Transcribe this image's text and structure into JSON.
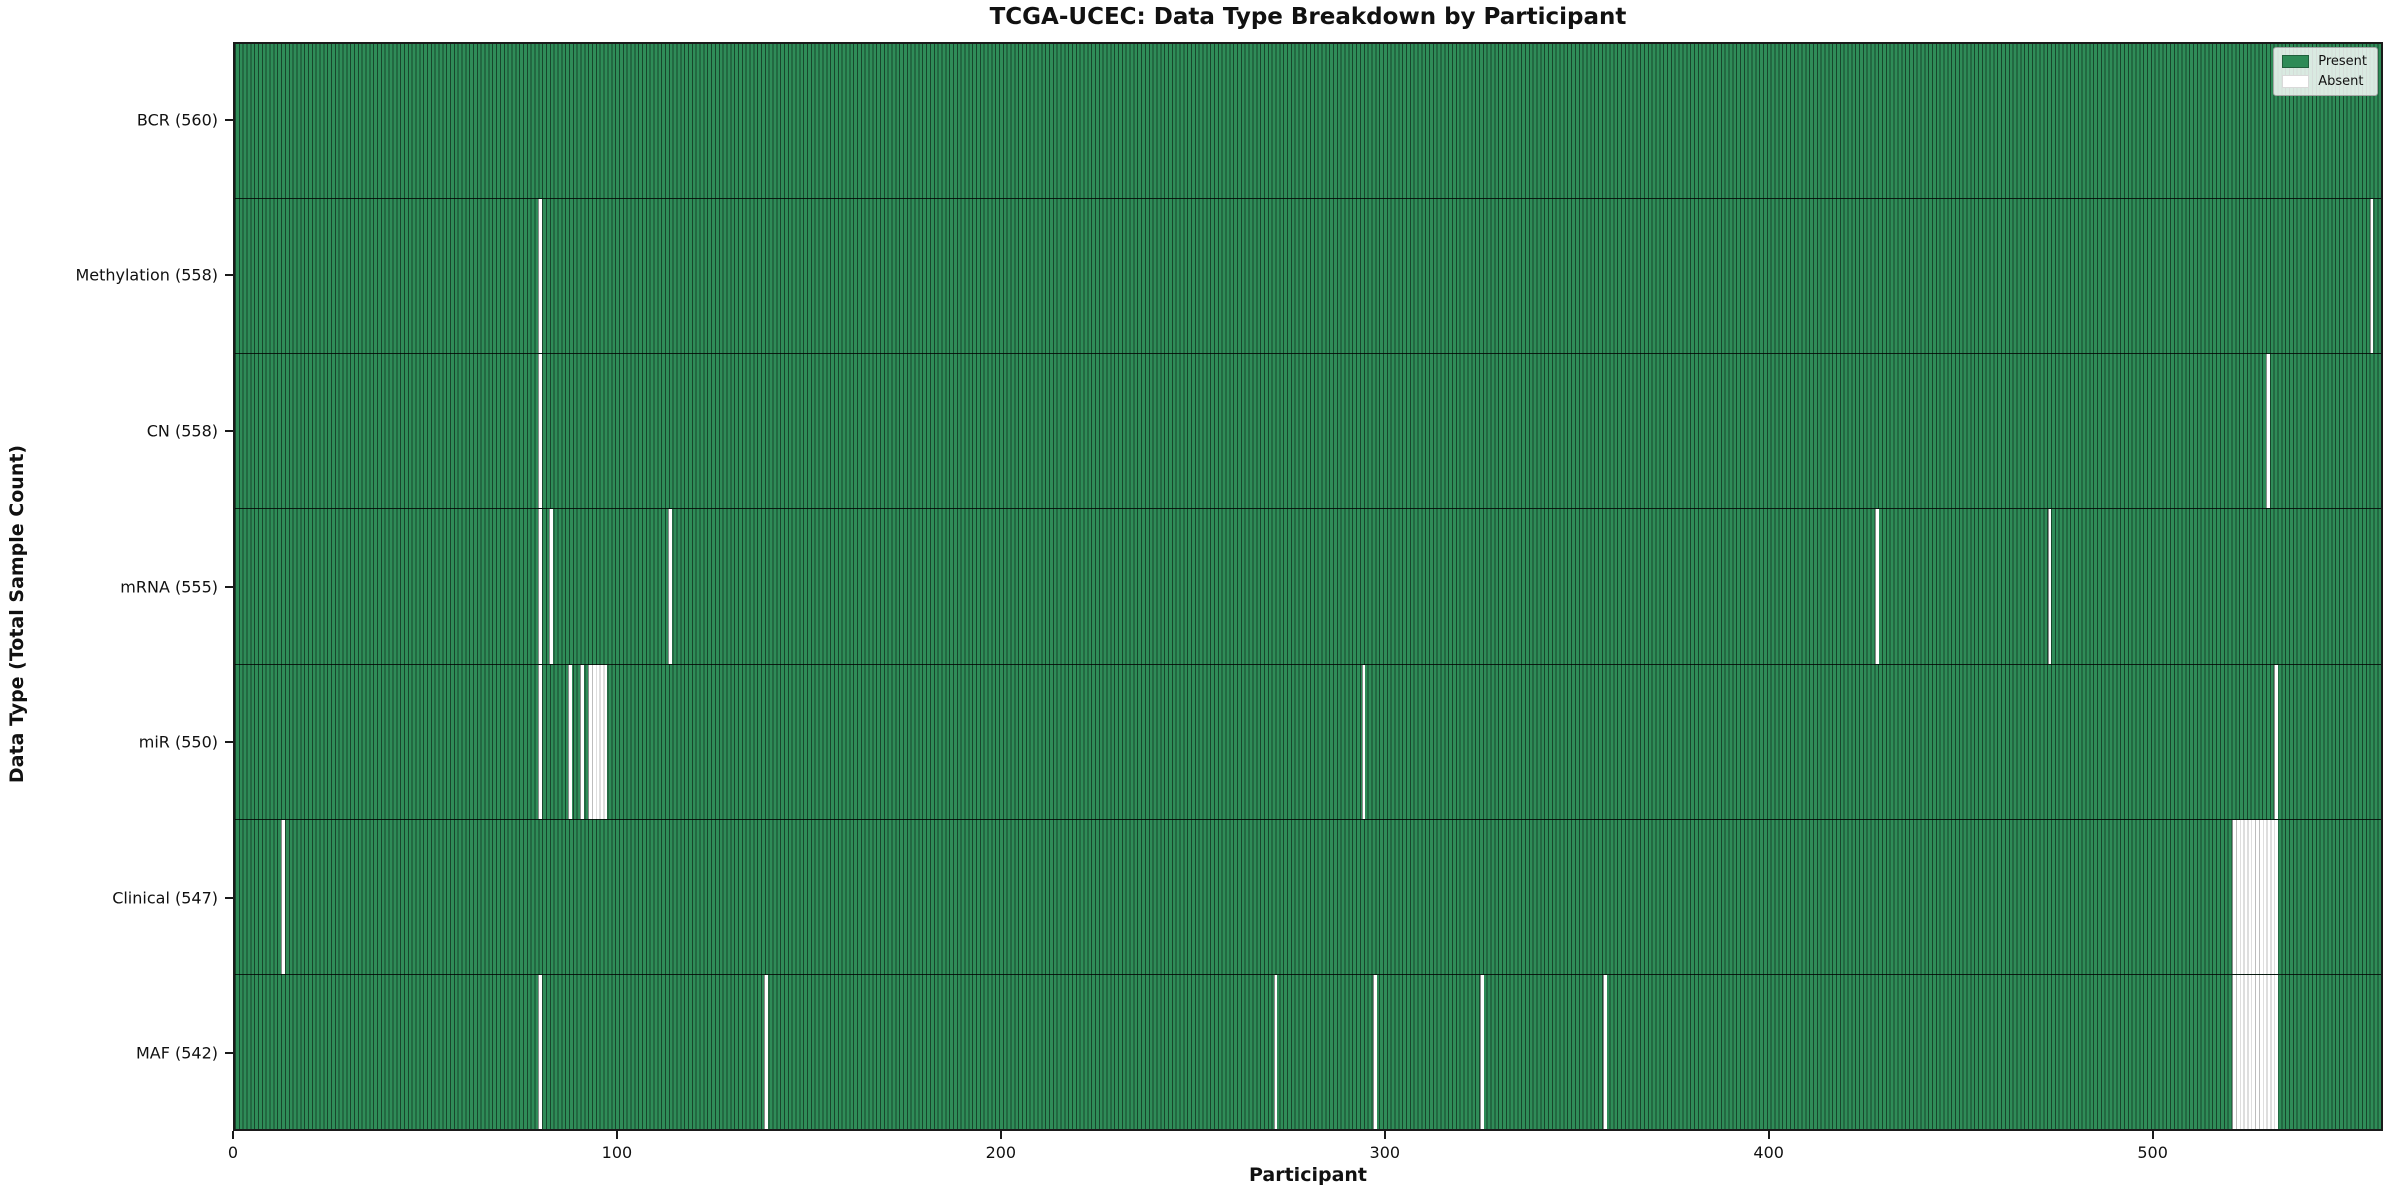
{
  "chart_data": {
    "type": "heatmap",
    "title": "TCGA-UCEC: Data Type Breakdown by Participant",
    "xlabel": "Participant",
    "ylabel": "Data Type (Total Sample Count)",
    "x_ticks": [
      0,
      100,
      200,
      300,
      400,
      500
    ],
    "x_max": 560,
    "n_participants": 560,
    "grid": false,
    "legend_position": "upper right",
    "colors": {
      "present": "#2e8b57",
      "absent": "#ffffff"
    },
    "legend": [
      {
        "key": "present",
        "label": "Present"
      },
      {
        "key": "absent",
        "label": "Absent"
      }
    ],
    "rows": [
      {
        "key": "bcr",
        "label": "BCR (560)",
        "total": 560,
        "absent_runs": []
      },
      {
        "key": "methylation",
        "label": "Methylation (558)",
        "total": 558,
        "absent_runs": [
          [
            79,
            1
          ],
          [
            557,
            1
          ]
        ]
      },
      {
        "key": "cn",
        "label": "CN (558)",
        "total": 558,
        "absent_runs": [
          [
            79,
            1
          ],
          [
            530,
            1
          ]
        ]
      },
      {
        "key": "mrna",
        "label": "mRNA (555)",
        "total": 555,
        "absent_runs": [
          [
            79,
            1
          ],
          [
            82,
            1
          ],
          [
            113,
            1
          ],
          [
            428,
            1
          ],
          [
            473,
            1
          ]
        ]
      },
      {
        "key": "mir",
        "label": "miR (550)",
        "total": 550,
        "absent_runs": [
          [
            79,
            1
          ],
          [
            87,
            1
          ],
          [
            90,
            1
          ],
          [
            92,
            5
          ],
          [
            294,
            1
          ],
          [
            532,
            1
          ]
        ]
      },
      {
        "key": "clinical",
        "label": "Clinical (547)",
        "total": 547,
        "absent_runs": [
          [
            12,
            1
          ],
          [
            521,
            12
          ]
        ]
      },
      {
        "key": "maf",
        "label": "MAF (542)",
        "total": 542,
        "absent_runs": [
          [
            79,
            1
          ],
          [
            138,
            1
          ],
          [
            271,
            1
          ],
          [
            297,
            1
          ],
          [
            325,
            1
          ],
          [
            357,
            1
          ],
          [
            521,
            12
          ]
        ]
      }
    ]
  }
}
